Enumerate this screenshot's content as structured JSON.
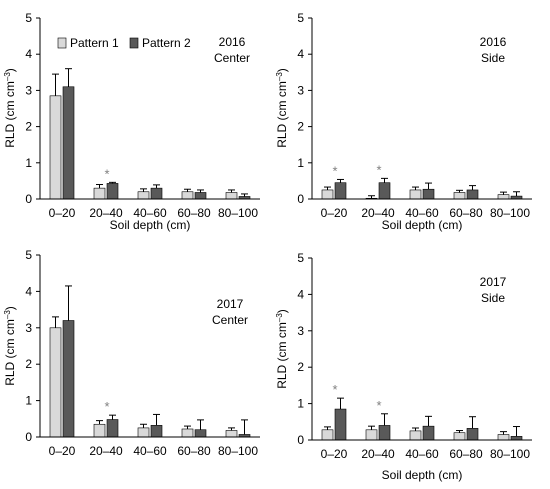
{
  "legend": {
    "items": [
      "Pattern 1",
      "Pattern 2"
    ]
  },
  "colors": {
    "pattern1": "#d9d9d9",
    "pattern2": "#595959",
    "axis": "#000000",
    "star": "#7f7f7f"
  },
  "chart_data": [
    {
      "type": "bar",
      "title": "2016",
      "subtitle": "Center",
      "xlabel": "Soil depth (cm)",
      "ylabel": "RLD (cm cm⁻³)",
      "categories": [
        "0–20",
        "20–40",
        "40–60",
        "60–80",
        "80–100"
      ],
      "ylim": [
        0,
        5
      ],
      "yticks": [
        "0",
        "1",
        "2",
        "3",
        "4",
        "5"
      ],
      "legend": "top-left",
      "series": [
        {
          "name": "Pattern 1",
          "values": [
            2.85,
            0.3,
            0.2,
            0.2,
            0.18
          ],
          "errors": [
            0.6,
            0.1,
            0.08,
            0.07,
            0.07
          ]
        },
        {
          "name": "Pattern 2",
          "values": [
            3.1,
            0.43,
            0.3,
            0.18,
            0.07
          ],
          "errors": [
            0.5,
            0.03,
            0.09,
            0.07,
            0.07
          ]
        }
      ],
      "stars": [
        "",
        "*",
        "",
        "",
        ""
      ]
    },
    {
      "type": "bar",
      "title": "2016",
      "subtitle": "Side",
      "xlabel": "Soil depth (cm)",
      "ylabel": "RLD (cm cm⁻³)",
      "categories": [
        "0–20",
        "20–40",
        "40–60",
        "60–80",
        "80–100"
      ],
      "ylim": [
        0,
        5
      ],
      "yticks": [
        "0",
        "1",
        "2",
        "3",
        "4",
        "5"
      ],
      "series": [
        {
          "name": "Pattern 1",
          "values": [
            0.25,
            0.02,
            0.25,
            0.18,
            0.12
          ],
          "errors": [
            0.08,
            0.07,
            0.08,
            0.06,
            0.07
          ]
        },
        {
          "name": "Pattern 2",
          "values": [
            0.45,
            0.45,
            0.27,
            0.25,
            0.08
          ],
          "errors": [
            0.09,
            0.12,
            0.17,
            0.12,
            0.12
          ]
        }
      ],
      "stars": [
        "*",
        "*",
        "",
        "",
        ""
      ]
    },
    {
      "type": "bar",
      "title": "2017",
      "subtitle": "Center",
      "xlabel": "",
      "ylabel": "RLD (cm cm⁻³)",
      "categories": [
        "0–20",
        "20–40",
        "40–60",
        "60–80",
        "80–100"
      ],
      "ylim": [
        0,
        5
      ],
      "yticks": [
        "0",
        "1",
        "2",
        "3",
        "4",
        "5"
      ],
      "series": [
        {
          "name": "Pattern 1",
          "values": [
            3.0,
            0.35,
            0.25,
            0.22,
            0.18
          ],
          "errors": [
            0.3,
            0.1,
            0.1,
            0.08,
            0.07
          ]
        },
        {
          "name": "Pattern 2",
          "values": [
            3.2,
            0.48,
            0.32,
            0.2,
            0.07
          ],
          "errors": [
            0.95,
            0.12,
            0.3,
            0.27,
            0.4
          ]
        }
      ],
      "stars": [
        "",
        "*",
        "",
        "",
        ""
      ]
    },
    {
      "type": "bar",
      "title": "2017",
      "subtitle": "Side",
      "xlabel": "Soil depth (cm)",
      "ylabel": "RLD (cm cm⁻³)",
      "categories": [
        "0–20",
        "20–40",
        "40–60",
        "60–80",
        "80–100"
      ],
      "ylim": [
        0,
        5
      ],
      "yticks": [
        "0",
        "1",
        "2",
        "3",
        "4",
        "5"
      ],
      "series": [
        {
          "name": "Pattern 1",
          "values": [
            0.28,
            0.28,
            0.25,
            0.2,
            0.15
          ],
          "errors": [
            0.08,
            0.1,
            0.08,
            0.06,
            0.08
          ]
        },
        {
          "name": "Pattern 2",
          "values": [
            0.85,
            0.4,
            0.38,
            0.32,
            0.1
          ],
          "errors": [
            0.3,
            0.32,
            0.27,
            0.32,
            0.27
          ]
        }
      ],
      "stars": [
        "*",
        "*",
        "",
        "",
        ""
      ]
    }
  ]
}
